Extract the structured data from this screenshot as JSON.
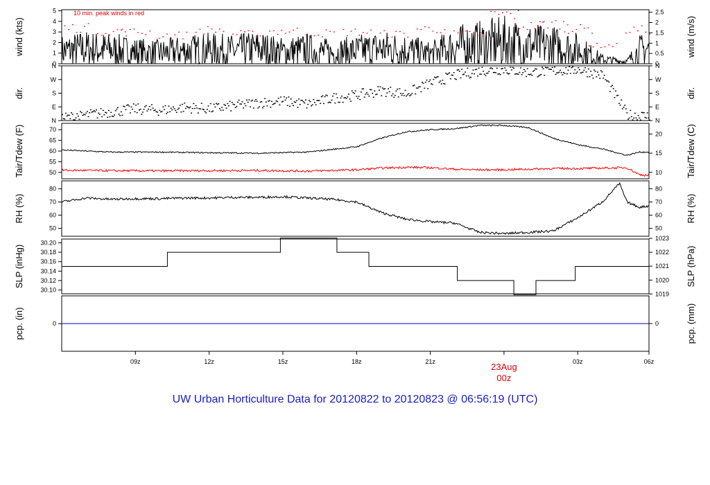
{
  "title": {
    "prefix": "UW Urban Horticulture Data for",
    "start": "20120822",
    "to": "to",
    "end": "20120823",
    "at": "@",
    "time": "06:56:19",
    "tz": "(UTC)"
  },
  "colors": {
    "series": "#000000",
    "peak": "#ff0000",
    "precip": "#0000cc",
    "title": "#1a1acc",
    "date": "#dd0000"
  },
  "chart_data": {
    "type": "line",
    "x_axis": {
      "unit": "hours UTC since 20120822 06z",
      "range": [
        0,
        23.9
      ],
      "ticks": [
        {
          "x": 3,
          "label": "09z"
        },
        {
          "x": 6,
          "label": "12z"
        },
        {
          "x": 9,
          "label": "15z"
        },
        {
          "x": 12,
          "label": "18z"
        },
        {
          "x": 15,
          "label": "21z"
        },
        {
          "x": 18,
          "label": "00z"
        },
        {
          "x": 21,
          "label": "03z"
        },
        {
          "x": 24,
          "label": "06z"
        }
      ],
      "date_label": "23Aug",
      "date_time_label": "00z",
      "date_x": 18
    },
    "panels": [
      {
        "id": "wind",
        "ylabel": "wind (kts)",
        "ylabel_right": "wind (m/s)",
        "ylim": [
          0,
          5.1
        ],
        "ticks": [
          "0",
          "1",
          "2",
          "3",
          "4",
          "5"
        ],
        "tick_values": [
          0,
          1,
          2,
          3,
          4,
          5
        ],
        "right_ticks": [
          "0",
          "0.5",
          "1",
          "1.5",
          "2",
          "2.5"
        ],
        "right_tick_values": [
          0,
          0.97,
          1.94,
          2.92,
          3.89,
          4.86
        ],
        "note": "10 min. peak winds in red",
        "series": [
          {
            "kind": "line",
            "x": [
              0,
              1,
              2,
              3,
              4,
              5,
              6,
              7,
              8,
              9,
              10,
              11,
              12,
              13,
              14,
              15,
              16,
              17,
              18,
              19,
              20,
              21,
              22,
              23,
              23.5,
              23.9
            ],
            "y": [
              1.2,
              1.4,
              1.3,
              1.1,
              1.0,
              1.2,
              1.3,
              1.2,
              1.4,
              1.1,
              1.3,
              1.0,
              1.2,
              1.4,
              1.3,
              0.9,
              1.6,
              1.8,
              2.0,
              1.7,
              1.6,
              1.3,
              0.4,
              0.2,
              1.2,
              1.4
            ]
          },
          {
            "kind": "peaks",
            "x": [
              0.5,
              2,
              3,
              4.5,
              6,
              7.5,
              9,
              10.5,
              12,
              13.5,
              15,
              16.5,
              18,
              19,
              20,
              21,
              22,
              23.5
            ],
            "y": [
              3.5,
              3.2,
              3.1,
              2.8,
              3.3,
              2.9,
              3.2,
              3.0,
              3.1,
              2.9,
              3.4,
              2.9,
              4.8,
              3.7,
              3.9,
              3.4,
              1.8,
              3.3
            ]
          }
        ]
      },
      {
        "id": "dir",
        "ylabel": "dir.",
        "ylabel_right": "dir.",
        "ylim": [
          0,
          360
        ],
        "ticks": [
          "N",
          "E",
          "S",
          "W",
          "N"
        ],
        "tick_values": [
          0,
          90,
          180,
          270,
          360
        ],
        "right_ticks": [
          "N",
          "E",
          "S",
          "W",
          "N"
        ],
        "right_tick_values": [
          0,
          90,
          180,
          270,
          360
        ],
        "series": [
          {
            "kind": "points",
            "x": [
              0,
              1,
              2,
              3,
              4,
              5,
              6,
              7,
              8,
              9,
              10,
              11,
              12,
              13,
              14,
              15,
              16,
              17,
              18,
              19,
              20,
              21,
              22,
              23,
              23.9
            ],
            "y": [
              20,
              40,
              60,
              80,
              70,
              90,
              80,
              100,
              120,
              130,
              110,
              150,
              170,
              200,
              180,
              250,
              300,
              330,
              340,
              320,
              330,
              340,
              300,
              40,
              30
            ]
          }
        ]
      },
      {
        "id": "temp",
        "ylabel": "Tair/Tdew (F)",
        "ylabel_right": "Tair/Tdew (C)",
        "ylim": [
          47,
          73
        ],
        "ticks": [
          "50",
          "55",
          "60",
          "65",
          "70"
        ],
        "tick_values": [
          50,
          55,
          60,
          65,
          70
        ],
        "right_ticks": [
          "10",
          "15",
          "20"
        ],
        "right_tick_values": [
          50,
          59,
          68
        ],
        "series": [
          {
            "kind": "line",
            "color": "black",
            "x": [
              0,
              2,
              4,
              6,
              8,
              10,
              12,
              13,
              14,
              15,
              16,
              17,
              18,
              19,
              20,
              21,
              22,
              23,
              23.5,
              23.9
            ],
            "y": [
              60.5,
              59.5,
              59.5,
              59.2,
              59.0,
              59.5,
              62,
              66,
              69,
              70,
              70.5,
              72,
              72,
              71,
              66,
              63,
              61,
              58,
              59.5,
              59.5
            ]
          },
          {
            "kind": "line",
            "color": "red",
            "x": [
              0,
              2,
              4,
              6,
              8,
              10,
              12,
              13,
              14,
              15,
              16,
              17,
              18,
              19,
              20,
              21,
              22,
              23,
              23.5,
              23.9
            ],
            "y": [
              51,
              50.8,
              50.7,
              50.8,
              50.9,
              50.6,
              51.2,
              52,
              52.4,
              52.2,
              51.5,
              51.2,
              51.2,
              51.5,
              51.8,
              51.8,
              52,
              52.2,
              49,
              48.5
            ]
          }
        ]
      },
      {
        "id": "rh",
        "ylabel": "RH (%)",
        "ylabel_right": "RH (%)",
        "ylim": [
          44,
          86
        ],
        "ticks": [
          "50",
          "60",
          "70",
          "80"
        ],
        "tick_values": [
          50,
          60,
          70,
          80
        ],
        "right_ticks": [
          "50",
          "60",
          "70",
          "80"
        ],
        "right_tick_values": [
          50,
          60,
          70,
          80
        ],
        "series": [
          {
            "kind": "line",
            "color": "black",
            "x": [
              0,
              1,
              2,
              3,
              4,
              5,
              6,
              7,
              8,
              9,
              10,
              11,
              12,
              13,
              14,
              15,
              16,
              17,
              18,
              19,
              20,
              21,
              22,
              22.7,
              23,
              23.5,
              23.9
            ],
            "y": [
              70,
              73,
              72,
              72.5,
              72.5,
              73,
              73,
              73.5,
              73.5,
              74,
              73,
              72,
              70,
              62,
              57,
              55,
              54,
              47,
              46,
              47,
              48,
              58,
              70,
              84,
              70,
              66,
              67
            ]
          }
        ]
      },
      {
        "id": "slp",
        "ylabel": "SLP (inHg)",
        "ylabel_right": "SLP (hPa)",
        "ylim": [
          30.092,
          30.208
        ],
        "ticks": [
          "30.10",
          "30.12",
          "30.14",
          "30.16",
          "30.18",
          "30.20"
        ],
        "tick_values": [
          30.1,
          30.12,
          30.14,
          30.16,
          30.18,
          30.2
        ],
        "right_ticks": [
          "1019",
          "1020",
          "1021",
          "1022",
          "1023"
        ],
        "right_tick_values": [
          30.0915,
          30.121,
          30.1505,
          30.18,
          30.2095
        ],
        "series": [
          {
            "kind": "step",
            "color": "black",
            "x": [
              0,
              4.3,
              8.9,
              11.2,
              12.5,
              16.1,
              18.4,
              19.3,
              20.9,
              23.9
            ],
            "y": [
              30.15,
              30.18,
              30.21,
              30.18,
              30.15,
              30.12,
              30.09,
              30.12,
              30.15,
              30.15
            ]
          }
        ]
      },
      {
        "id": "pcp",
        "ylabel": "pcp. (in)",
        "ylabel_right": "pcp. (mm)",
        "ylim": [
          -1,
          1
        ],
        "ticks": [
          "0"
        ],
        "tick_values": [
          0
        ],
        "right_ticks": [
          "0"
        ],
        "right_tick_values": [
          0
        ],
        "series": [
          {
            "kind": "line",
            "color": "blue",
            "x": [
              0,
              23.9
            ],
            "y": [
              0,
              0
            ]
          }
        ]
      }
    ]
  }
}
